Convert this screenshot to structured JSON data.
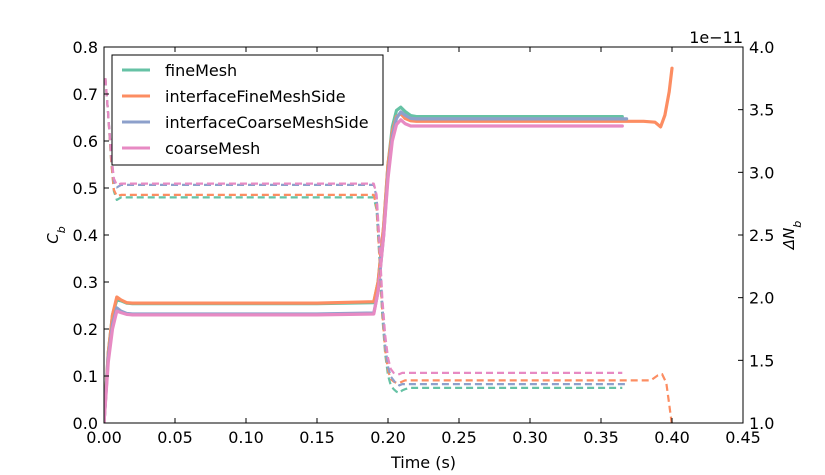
{
  "chart_data": {
    "type": "line",
    "xlabel": "Time (s)",
    "ylabel_left": "C_b",
    "ylabel_right": "ΔN_b",
    "right_axis_offset_label": "1e−11",
    "xlim": [
      0.0,
      0.45
    ],
    "ylim_left": [
      0.0,
      0.8
    ],
    "ylim_right": [
      1.0,
      4.0
    ],
    "x_ticks": [
      "0.00",
      "0.05",
      "0.10",
      "0.15",
      "0.20",
      "0.25",
      "0.30",
      "0.35",
      "0.40",
      "0.45"
    ],
    "y_ticks_left": [
      "0.0",
      "0.1",
      "0.2",
      "0.3",
      "0.4",
      "0.5",
      "0.6",
      "0.7",
      "0.8"
    ],
    "y_ticks_right": [
      "1.0",
      "1.5",
      "2.0",
      "2.5",
      "3.0",
      "3.5",
      "4.0"
    ],
    "legend_position": "top-left",
    "colors": {
      "fineMesh": "#66c2a5",
      "interfaceFineMeshSide": "#fc8d62",
      "interfaceCoarseMeshSide": "#8da0cb",
      "coarseMesh": "#e78ac3"
    },
    "series": [
      {
        "name": "fineMesh",
        "axis": "left",
        "style": "solid",
        "x": [
          0.0,
          0.003,
          0.006,
          0.009,
          0.012,
          0.016,
          0.02,
          0.05,
          0.1,
          0.15,
          0.19,
          0.193,
          0.197,
          0.2,
          0.203,
          0.206,
          0.209,
          0.212,
          0.216,
          0.22,
          0.25,
          0.3,
          0.35,
          0.365
        ],
        "y": [
          0.0,
          0.15,
          0.23,
          0.262,
          0.26,
          0.255,
          0.254,
          0.254,
          0.254,
          0.254,
          0.256,
          0.3,
          0.42,
          0.55,
          0.63,
          0.665,
          0.672,
          0.663,
          0.654,
          0.652,
          0.652,
          0.652,
          0.652,
          0.652
        ]
      },
      {
        "name": "interfaceFineMeshSide",
        "axis": "left",
        "style": "solid",
        "x": [
          0.0,
          0.003,
          0.006,
          0.009,
          0.012,
          0.016,
          0.02,
          0.05,
          0.1,
          0.15,
          0.19,
          0.193,
          0.197,
          0.2,
          0.203,
          0.206,
          0.209,
          0.212,
          0.216,
          0.22,
          0.25,
          0.3,
          0.35,
          0.38,
          0.388,
          0.392,
          0.395,
          0.398,
          0.4
        ],
        "y": [
          0.0,
          0.15,
          0.23,
          0.268,
          0.262,
          0.256,
          0.255,
          0.255,
          0.255,
          0.255,
          0.258,
          0.3,
          0.42,
          0.55,
          0.62,
          0.652,
          0.658,
          0.648,
          0.643,
          0.642,
          0.642,
          0.642,
          0.642,
          0.642,
          0.64,
          0.63,
          0.655,
          0.705,
          0.755
        ]
      },
      {
        "name": "interfaceCoarseMeshSide",
        "axis": "left",
        "style": "solid",
        "x": [
          0.0,
          0.003,
          0.006,
          0.009,
          0.012,
          0.016,
          0.02,
          0.05,
          0.1,
          0.15,
          0.19,
          0.193,
          0.197,
          0.2,
          0.203,
          0.206,
          0.209,
          0.212,
          0.216,
          0.22,
          0.25,
          0.3,
          0.35,
          0.368
        ],
        "y": [
          0.0,
          0.14,
          0.21,
          0.245,
          0.238,
          0.233,
          0.232,
          0.232,
          0.232,
          0.232,
          0.234,
          0.28,
          0.4,
          0.53,
          0.61,
          0.648,
          0.662,
          0.655,
          0.648,
          0.647,
          0.647,
          0.647,
          0.647,
          0.647
        ]
      },
      {
        "name": "coarseMesh",
        "axis": "left",
        "style": "solid",
        "x": [
          0.0,
          0.003,
          0.006,
          0.009,
          0.012,
          0.016,
          0.02,
          0.05,
          0.1,
          0.15,
          0.19,
          0.193,
          0.197,
          0.2,
          0.203,
          0.206,
          0.209,
          0.212,
          0.216,
          0.22,
          0.25,
          0.3,
          0.35,
          0.365
        ],
        "y": [
          0.0,
          0.13,
          0.2,
          0.238,
          0.235,
          0.231,
          0.23,
          0.23,
          0.23,
          0.23,
          0.232,
          0.28,
          0.4,
          0.52,
          0.6,
          0.635,
          0.645,
          0.637,
          0.632,
          0.632,
          0.632,
          0.632,
          0.632,
          0.632
        ]
      },
      {
        "name": "fineMesh",
        "axis": "right",
        "style": "dashed",
        "x": [
          0.001,
          0.003,
          0.005,
          0.007,
          0.009,
          0.012,
          0.016,
          0.05,
          0.1,
          0.15,
          0.19,
          0.192,
          0.194,
          0.196,
          0.198,
          0.2,
          0.202,
          0.204,
          0.206,
          0.208,
          0.21,
          0.212,
          0.215,
          0.22,
          0.25,
          0.3,
          0.35,
          0.365
        ],
        "y": [
          3.75,
          3.45,
          3.1,
          2.85,
          2.78,
          2.8,
          2.8,
          2.8,
          2.8,
          2.8,
          2.8,
          2.7,
          2.3,
          1.85,
          1.55,
          1.38,
          1.3,
          1.27,
          1.25,
          1.24,
          1.26,
          1.27,
          1.28,
          1.28,
          1.28,
          1.28,
          1.28,
          1.28
        ]
      },
      {
        "name": "interfaceFineMeshSide",
        "axis": "right",
        "style": "dashed",
        "x": [
          0.001,
          0.003,
          0.005,
          0.007,
          0.009,
          0.012,
          0.016,
          0.05,
          0.1,
          0.15,
          0.19,
          0.192,
          0.194,
          0.196,
          0.198,
          0.2,
          0.202,
          0.204,
          0.206,
          0.208,
          0.21,
          0.212,
          0.215,
          0.22,
          0.25,
          0.3,
          0.35,
          0.385,
          0.39,
          0.393,
          0.396,
          0.398,
          0.4
        ],
        "y": [
          3.75,
          3.45,
          3.1,
          2.86,
          2.81,
          2.82,
          2.82,
          2.82,
          2.82,
          2.82,
          2.82,
          2.72,
          2.32,
          1.88,
          1.58,
          1.42,
          1.35,
          1.33,
          1.32,
          1.32,
          1.33,
          1.34,
          1.34,
          1.34,
          1.34,
          1.34,
          1.34,
          1.34,
          1.38,
          1.39,
          1.32,
          1.15,
          0.98
        ]
      },
      {
        "name": "interfaceCoarseMeshSide",
        "axis": "right",
        "style": "dashed",
        "x": [
          0.001,
          0.003,
          0.005,
          0.007,
          0.009,
          0.012,
          0.016,
          0.05,
          0.1,
          0.15,
          0.19,
          0.192,
          0.194,
          0.196,
          0.198,
          0.2,
          0.202,
          0.204,
          0.206,
          0.208,
          0.21,
          0.212,
          0.215,
          0.22,
          0.25,
          0.3,
          0.35,
          0.368
        ],
        "y": [
          3.75,
          3.45,
          3.15,
          2.93,
          2.88,
          2.9,
          2.9,
          2.9,
          2.9,
          2.9,
          2.9,
          2.8,
          2.4,
          1.95,
          1.62,
          1.45,
          1.37,
          1.34,
          1.31,
          1.3,
          1.31,
          1.31,
          1.31,
          1.31,
          1.31,
          1.31,
          1.31,
          1.31
        ]
      },
      {
        "name": "coarseMesh",
        "axis": "right",
        "style": "dashed",
        "x": [
          0.001,
          0.003,
          0.005,
          0.007,
          0.009,
          0.012,
          0.016,
          0.05,
          0.1,
          0.15,
          0.19,
          0.192,
          0.194,
          0.196,
          0.198,
          0.2,
          0.202,
          0.204,
          0.206,
          0.208,
          0.21,
          0.212,
          0.215,
          0.22,
          0.25,
          0.3,
          0.35,
          0.365
        ],
        "y": [
          3.75,
          3.45,
          3.15,
          2.95,
          2.9,
          2.91,
          2.91,
          2.91,
          2.91,
          2.91,
          2.91,
          2.82,
          2.45,
          2.0,
          1.7,
          1.52,
          1.43,
          1.4,
          1.39,
          1.39,
          1.4,
          1.4,
          1.4,
          1.4,
          1.4,
          1.4,
          1.4,
          1.4
        ]
      }
    ],
    "legend": [
      "fineMesh",
      "interfaceFineMeshSide",
      "interfaceCoarseMeshSide",
      "coarseMesh"
    ]
  }
}
